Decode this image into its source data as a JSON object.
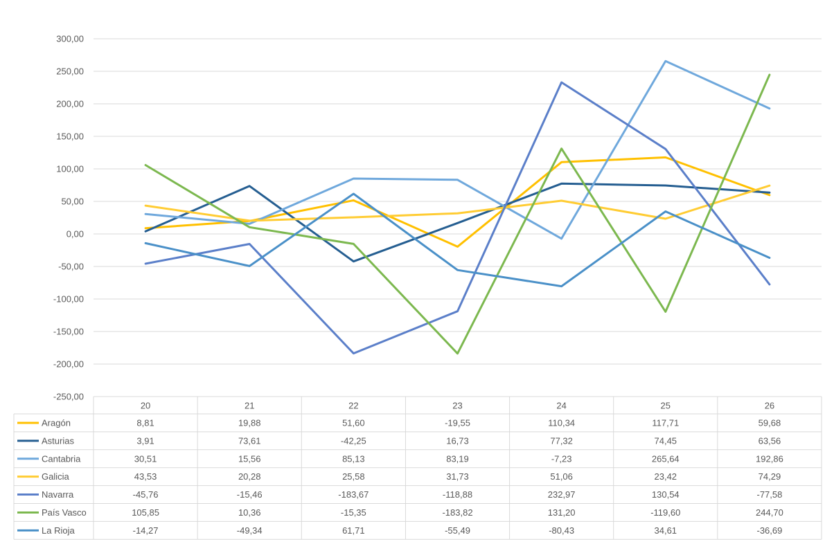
{
  "chart_data": {
    "type": "line",
    "categories": [
      "20",
      "21",
      "22",
      "23",
      "24",
      "25",
      "26"
    ],
    "ylim": [
      -250,
      300
    ],
    "yticks": [
      "300,00",
      "250,00",
      "200,00",
      "150,00",
      "100,00",
      "50,00",
      "0,00",
      "-50,00",
      "-100,00",
      "-150,00",
      "-200,00",
      "-250,00"
    ],
    "grid": true,
    "legend": "data-table",
    "series": [
      {
        "name": "Aragón",
        "color": "#FFC000",
        "values": [
          8.81,
          19.88,
          51.6,
          -19.55,
          110.34,
          117.71,
          59.68
        ],
        "labels": [
          "8,81",
          "19,88",
          "51,60",
          "-19,55",
          "110,34",
          "117,71",
          "59,68"
        ]
      },
      {
        "name": "Asturias",
        "color": "#255E91",
        "values": [
          3.91,
          73.61,
          -42.25,
          16.73,
          77.32,
          74.45,
          63.56
        ],
        "labels": [
          "3,91",
          "73,61",
          "-42,25",
          "16,73",
          "77,32",
          "74,45",
          "63,56"
        ]
      },
      {
        "name": "Cantabria",
        "color": "#6FA8DC",
        "values": [
          30.51,
          15.56,
          85.13,
          83.19,
          -7.23,
          265.64,
          192.86
        ],
        "labels": [
          "30,51",
          "15,56",
          "85,13",
          "83,19",
          "-7,23",
          "265,64",
          "192,86"
        ]
      },
      {
        "name": "Galicia",
        "color": "#FFCC33",
        "values": [
          43.53,
          20.28,
          25.58,
          31.73,
          51.06,
          23.42,
          74.29
        ],
        "labels": [
          "43,53",
          "20,28",
          "25,58",
          "31,73",
          "51,06",
          "23,42",
          "74,29"
        ]
      },
      {
        "name": "Navarra",
        "color": "#5B7FC9",
        "values": [
          -45.76,
          -15.46,
          -183.67,
          -118.88,
          232.97,
          130.54,
          -77.58
        ],
        "labels": [
          "-45,76",
          "-15,46",
          "-183,67",
          "-118,88",
          "232,97",
          "130,54",
          "-77,58"
        ]
      },
      {
        "name": "País Vasco",
        "color": "#7CB84F",
        "values": [
          105.85,
          10.36,
          -15.35,
          -183.82,
          131.2,
          -119.6,
          244.7
        ],
        "labels": [
          "105,85",
          "10,36",
          "-15,35",
          "-183,82",
          "131,20",
          "-119,60",
          "244,70"
        ]
      },
      {
        "name": "La Rioja",
        "color": "#4A90C8",
        "values": [
          -14.27,
          -49.34,
          61.71,
          -55.49,
          -80.43,
          34.61,
          -36.69
        ],
        "labels": [
          "-14,27",
          "-49,34",
          "61,71",
          "-55,49",
          "-80,43",
          "34,61",
          "-36,69"
        ]
      }
    ]
  }
}
